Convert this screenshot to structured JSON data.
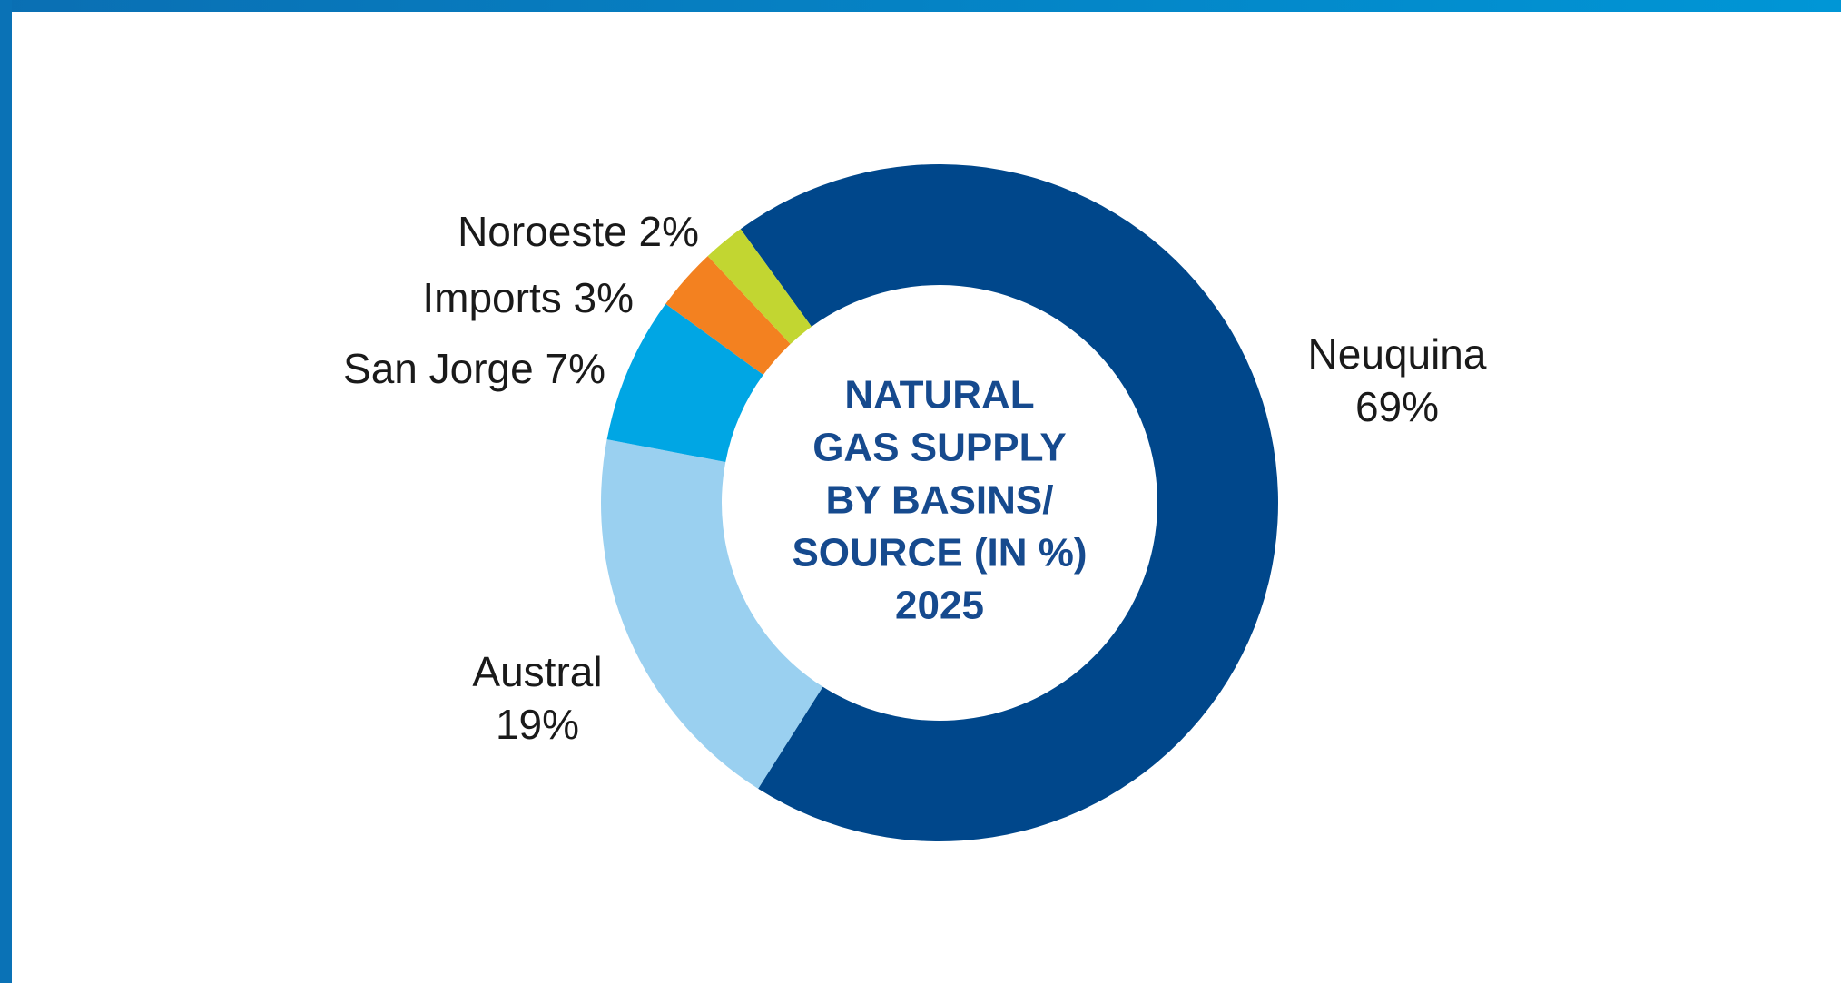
{
  "chart_data": {
    "type": "donut",
    "title_lines": [
      "NATURAL",
      "GAS SUPPLY",
      "BY BASINS/",
      "SOURCE (IN %)",
      "2025"
    ],
    "categories": [
      "Neuquina",
      "Austral",
      "San Jorge",
      "Imports",
      "Noroeste"
    ],
    "values": [
      69,
      19,
      7,
      3,
      2
    ],
    "value_labels": [
      "69%",
      "19%",
      "7%",
      "3%",
      "2%"
    ],
    "colors": [
      "#00478b",
      "#9ad0f0",
      "#00a6e4",
      "#f38120",
      "#c2d631"
    ]
  }
}
